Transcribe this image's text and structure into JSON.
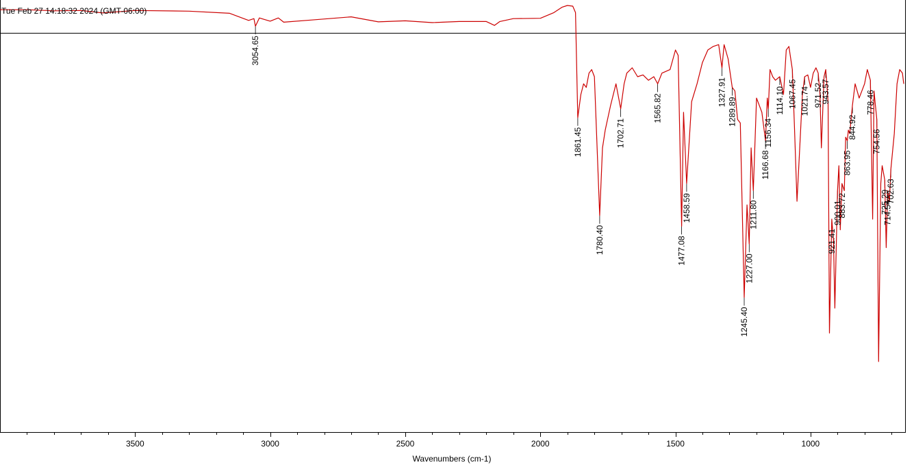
{
  "header": {
    "timestamp": "Tue Feb 27 14:18:32 2024 (GMT-06:00)"
  },
  "colors": {
    "spectrum": "#cc0000",
    "frame": "#000000",
    "background": "#ffffff"
  },
  "chart_data": {
    "type": "line",
    "title": "",
    "xlabel": "Wavenumbers (cm-1)",
    "ylabel": "",
    "xlim": [
      4000,
      650
    ],
    "x_reversed": true,
    "x_ticks": [
      "3500",
      "3000",
      "2500",
      "2000",
      "1500",
      "1000"
    ],
    "y_axis_shown": false,
    "grid": false,
    "legend": "none",
    "reference_line": true,
    "series": [
      {
        "x": [
          4000,
          3900,
          3800,
          3700,
          3620,
          3500,
          3300,
          3150,
          3080,
          3060,
          3054.65,
          3040,
          3000,
          2970,
          2950,
          2850,
          2700,
          2600,
          2500,
          2400,
          2300,
          2200,
          2170,
          2150,
          2100,
          2000,
          1950,
          1920,
          1900,
          1880,
          1870,
          1861.45,
          1850,
          1840,
          1830,
          1820,
          1810,
          1800,
          1780.4,
          1770,
          1760,
          1740,
          1720,
          1702.71,
          1690,
          1680,
          1660,
          1640,
          1620,
          1600,
          1580,
          1565.82,
          1550,
          1520,
          1500,
          1490,
          1477.08,
          1470,
          1458.59,
          1440,
          1420,
          1400,
          1380,
          1360,
          1340,
          1327.91,
          1320,
          1305,
          1289.89,
          1280,
          1270,
          1260,
          1245.4,
          1235,
          1227,
          1220,
          1211.8,
          1200,
          1190,
          1180,
          1166.68,
          1160,
          1156.34,
          1150,
          1140,
          1130,
          1114.1,
          1100,
          1090,
          1080,
          1067.45,
          1060,
          1050,
          1040,
          1030,
          1021.74,
          1010,
          1000,
          990,
          980,
          971.52,
          965,
          960,
          950,
          943.57,
          935,
          930,
          921.41,
          915,
          910,
          900.01,
          895,
          890,
          883.72,
          875,
          870,
          863.95,
          860,
          855,
          850,
          844.92,
          835,
          820,
          800,
          790,
          778.46,
          770,
          765,
          760,
          754.56,
          748,
          740,
          735,
          725.29,
          720,
          714.54,
          708,
          702.63,
          690,
          680,
          670,
          660,
          655
        ],
        "y": [
          98.8,
          98.8,
          98.5,
          98.6,
          97.9,
          98.6,
          98.4,
          97.8,
          95.8,
          96.3,
          94.2,
          96.5,
          95.6,
          96.5,
          95.3,
          95.9,
          96.8,
          95.4,
          95.7,
          95.2,
          95.5,
          95.5,
          94.4,
          95.5,
          96.3,
          96.4,
          98,
          99.5,
          100,
          99.8,
          98,
          68.5,
          75,
          78,
          77,
          81,
          82,
          80,
          41,
          60,
          65,
          72,
          78,
          71,
          78,
          81,
          82.5,
          80,
          80.5,
          79,
          80,
          78,
          81,
          82,
          87.5,
          86,
          38,
          70,
          50,
          73,
          78,
          84,
          87.5,
          88.5,
          89,
          82.5,
          89,
          85,
          77,
          76,
          68,
          67,
          18,
          44,
          33,
          60,
          48,
          74,
          72,
          70,
          62,
          74,
          71,
          82,
          80,
          79,
          80,
          75,
          87.5,
          88.5,
          82,
          67,
          45,
          60,
          75,
          80,
          80.5,
          77,
          81,
          82.5,
          81,
          75,
          60,
          80,
          82,
          73,
          8,
          40,
          34,
          15,
          48,
          55,
          37,
          50,
          48,
          63,
          62,
          65,
          64,
          68,
          72,
          78,
          74,
          78,
          82,
          79,
          40,
          76,
          72,
          68,
          0,
          50,
          55,
          51,
          32,
          48,
          45,
          54,
          64,
          78,
          82,
          81,
          78
        ]
      }
    ],
    "peak_labels": [
      {
        "x": 3054.65,
        "text": "3054.65"
      },
      {
        "x": 1861.45,
        "text": "1861.45"
      },
      {
        "x": 1780.4,
        "text": "1780.40"
      },
      {
        "x": 1702.71,
        "text": "1702.71"
      },
      {
        "x": 1565.82,
        "text": "1565.82"
      },
      {
        "x": 1477.08,
        "text": "1477.08"
      },
      {
        "x": 1458.59,
        "text": "1458.59"
      },
      {
        "x": 1327.91,
        "text": "1327.91"
      },
      {
        "x": 1289.89,
        "text": "1289.89"
      },
      {
        "x": 1245.4,
        "text": "1245.40"
      },
      {
        "x": 1227.0,
        "text": "1227.00"
      },
      {
        "x": 1211.8,
        "text": "1211.80"
      },
      {
        "x": 1166.68,
        "text": "1166.68"
      },
      {
        "x": 1156.34,
        "text": "1156.34"
      },
      {
        "x": 1114.1,
        "text": "1114.10"
      },
      {
        "x": 1067.45,
        "text": "1067.45"
      },
      {
        "x": 1021.74,
        "text": "1021.74"
      },
      {
        "x": 971.52,
        "text": "971.52"
      },
      {
        "x": 943.57,
        "text": "943.57"
      },
      {
        "x": 921.41,
        "text": "921.41"
      },
      {
        "x": 900.01,
        "text": "900.01"
      },
      {
        "x": 883.72,
        "text": "883.72"
      },
      {
        "x": 863.95,
        "text": "863.95"
      },
      {
        "x": 844.92,
        "text": "844.92"
      },
      {
        "x": 778.46,
        "text": "778.46"
      },
      {
        "x": 754.56,
        "text": "754.56"
      },
      {
        "x": 725.29,
        "text": "725.29"
      },
      {
        "x": 714.54,
        "text": "714.54"
      },
      {
        "x": 702.63,
        "text": "702.63"
      }
    ]
  }
}
